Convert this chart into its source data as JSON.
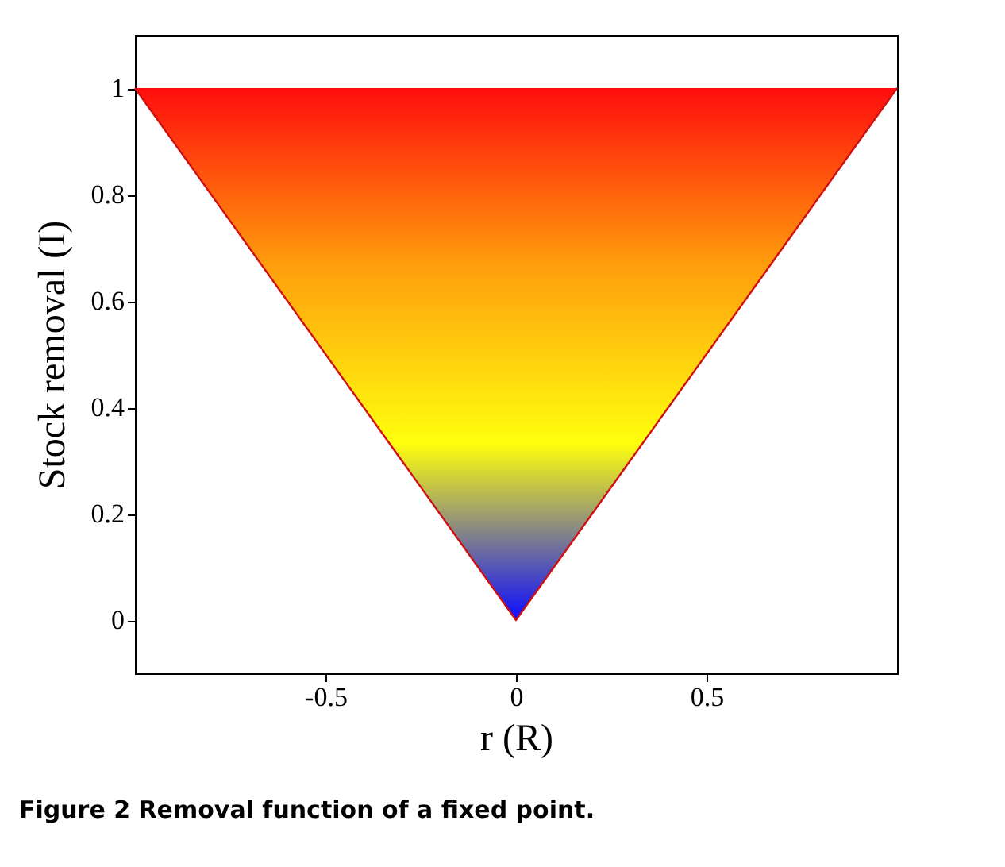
{
  "chart_data": {
    "type": "line",
    "xlabel": "r (R)",
    "ylabel": "Stock removal (I)",
    "annotations": [
      "Figure 2 Removal function of a fixed point."
    ],
    "x": [
      -1,
      0,
      1
    ],
    "series": [
      {
        "color": "#d01010",
        "values": [
          1,
          0,
          1
        ],
        "lower": [
          1,
          0,
          1
        ],
        "upper": [
          1,
          1,
          1
        ]
      }
    ],
    "colors": [
      "#0000ff",
      "#ffff00",
      "#ff9900",
      "#ff0000"
    ],
    "xlim": [
      -1,
      1
    ],
    "xticks": [
      -0.5,
      0,
      0.5
    ],
    "ylim": [
      -0.1,
      1.1
    ],
    "yticks": [
      0,
      0.2,
      0.4,
      0.6,
      0.8,
      1
    ],
    "grid": false,
    "marker": "none",
    "line_style": "solid"
  }
}
